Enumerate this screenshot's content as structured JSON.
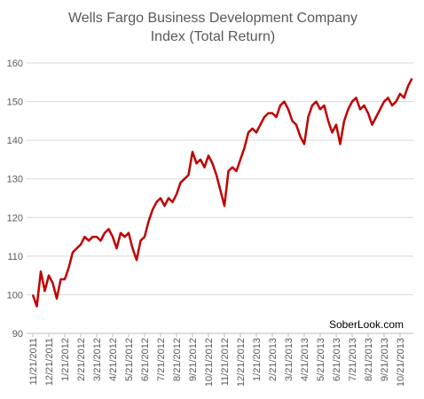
{
  "chart_data": {
    "type": "line",
    "title": "Wells Fargo Business Development Company Index (Total Return)",
    "annotation": "SoberLook.com",
    "categories": [
      "11/21/2011",
      null,
      null,
      null,
      "12/21/2011",
      null,
      null,
      null,
      "1/21/2012",
      null,
      null,
      null,
      "2/21/2012",
      null,
      null,
      null,
      "3/21/2012",
      null,
      null,
      null,
      "4/21/2012",
      null,
      null,
      null,
      "5/21/2012",
      null,
      null,
      null,
      "6/21/2012",
      null,
      null,
      null,
      "7/21/2012",
      null,
      null,
      null,
      "8/21/2012",
      null,
      null,
      null,
      "9/21/2012",
      null,
      null,
      null,
      "10/21/2012",
      null,
      null,
      null,
      "11/21/2012",
      null,
      null,
      null,
      "12/21/2012",
      null,
      null,
      null,
      "1/21/2013",
      null,
      null,
      null,
      "2/21/2013",
      null,
      null,
      null,
      "3/21/2013",
      null,
      null,
      null,
      "4/21/2013",
      null,
      null,
      null,
      "5/21/2013",
      null,
      null,
      null,
      "6/21/2013",
      null,
      null,
      null,
      "7/21/2013",
      null,
      null,
      null,
      "8/21/2013",
      null,
      null,
      null,
      "9/21/2013",
      null,
      null,
      null,
      "10/21/2013",
      null,
      null,
      null
    ],
    "series": [
      {
        "name": "Index",
        "color": "#c00000",
        "values": [
          100,
          97,
          106,
          101,
          105,
          103,
          99,
          104,
          104,
          107,
          111,
          112,
          113,
          115,
          114,
          115,
          115,
          114,
          116,
          117,
          115,
          112,
          116,
          115,
          116,
          112,
          109,
          114,
          115,
          119,
          122,
          124,
          125,
          123,
          125,
          124,
          126,
          129,
          130,
          131,
          137,
          134,
          135,
          133,
          136,
          134,
          131,
          127,
          123,
          132,
          133,
          132,
          135,
          138,
          142,
          143,
          142,
          144,
          146,
          147,
          147,
          146,
          149,
          150,
          148,
          145,
          144,
          141,
          139,
          146,
          149,
          150,
          148,
          149,
          145,
          142,
          144,
          139,
          145,
          148,
          150,
          151,
          148,
          149,
          147,
          144,
          146,
          148,
          150,
          151,
          149,
          150,
          152,
          151,
          154,
          156
        ]
      }
    ],
    "ylim": [
      90,
      160
    ],
    "yticks": [
      90,
      100,
      110,
      120,
      130,
      140,
      150,
      160
    ],
    "grid": true
  }
}
